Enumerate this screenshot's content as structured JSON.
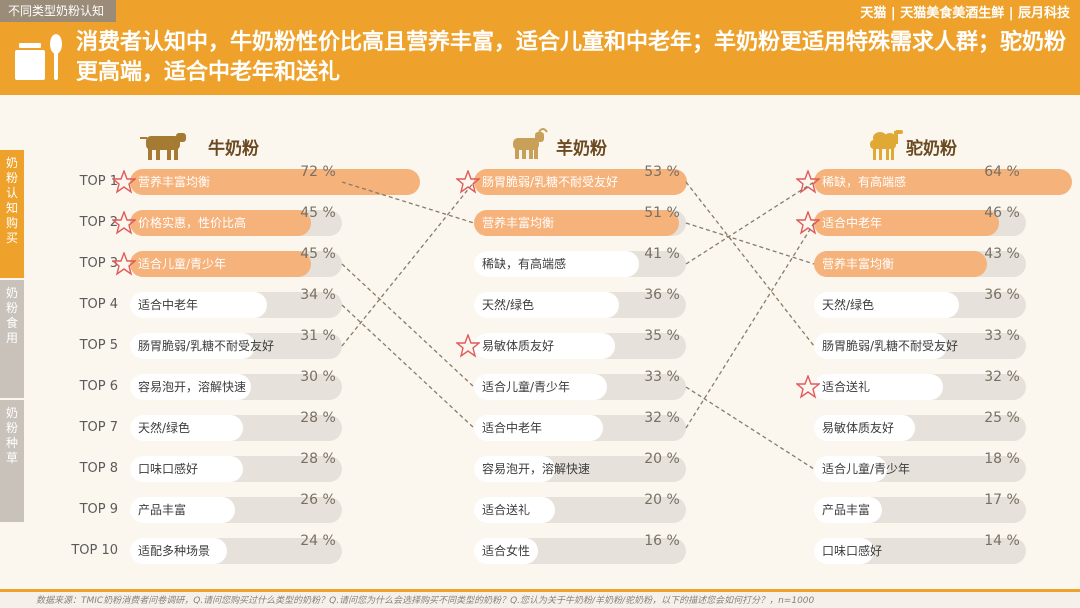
{
  "header": {
    "tag": "不同类型奶粉认知",
    "brand": "天猫 | 天猫美食美酒生鲜 | 辰月科技",
    "title": "消费者认知中，牛奶粉性价比高且营养丰富，适合儿童和中老年；羊奶粉更适用特殊需求人群；驼奶粉更高端，适合中老年和送礼",
    "accent_color": "#eea12b"
  },
  "sidenav": {
    "items": [
      {
        "label": "奶粉认知购买",
        "active": true
      },
      {
        "label": "奶粉食用",
        "active": false
      },
      {
        "label": "奶粉种草",
        "active": false
      }
    ]
  },
  "ranks": [
    "TOP 1",
    "TOP 2",
    "TOP 3",
    "TOP 4",
    "TOP 5",
    "TOP 6",
    "TOP 7",
    "TOP 8",
    "TOP 9",
    "TOP 10"
  ],
  "chart_data": {
    "type": "bar",
    "orientation": "horizontal",
    "unit": "%",
    "xlim": [
      0,
      100
    ],
    "series": [
      {
        "name": "牛奶粉",
        "icon": "cow-icon",
        "items": [
          {
            "label": "营养丰富均衡",
            "value": 72,
            "star": true
          },
          {
            "label": "价格实惠，性价比高",
            "value": 45,
            "star": true
          },
          {
            "label": "适合儿童/青少年",
            "value": 45,
            "star": true
          },
          {
            "label": "适合中老年",
            "value": 34,
            "star": false
          },
          {
            "label": "肠胃脆弱/乳糖不耐受友好",
            "value": 31,
            "star": false
          },
          {
            "label": "容易泡开，溶解快速",
            "value": 30,
            "star": false
          },
          {
            "label": "天然/绿色",
            "value": 28,
            "star": false
          },
          {
            "label": "口味口感好",
            "value": 28,
            "star": false
          },
          {
            "label": "产品丰富",
            "value": 26,
            "star": false
          },
          {
            "label": "适配多种场景",
            "value": 24,
            "star": false
          }
        ]
      },
      {
        "name": "羊奶粉",
        "icon": "goat-icon",
        "items": [
          {
            "label": "肠胃脆弱/乳糖不耐受友好",
            "value": 53,
            "star": true
          },
          {
            "label": "营养丰富均衡",
            "value": 51,
            "star": false
          },
          {
            "label": "稀缺，有高端感",
            "value": 41,
            "star": false
          },
          {
            "label": "天然/绿色",
            "value": 36,
            "star": false
          },
          {
            "label": "易敏体质友好",
            "value": 35,
            "star": true
          },
          {
            "label": "适合儿童/青少年",
            "value": 33,
            "star": false
          },
          {
            "label": "适合中老年",
            "value": 32,
            "star": false
          },
          {
            "label": "容易泡开，溶解快速",
            "value": 20,
            "star": false
          },
          {
            "label": "适合送礼",
            "value": 20,
            "star": false
          },
          {
            "label": "适合女性",
            "value": 16,
            "star": false
          }
        ]
      },
      {
        "name": "驼奶粉",
        "icon": "camel-icon",
        "items": [
          {
            "label": "稀缺，有高端感",
            "value": 64,
            "star": true
          },
          {
            "label": "适合中老年",
            "value": 46,
            "star": true
          },
          {
            "label": "营养丰富均衡",
            "value": 43,
            "star": false
          },
          {
            "label": "天然/绿色",
            "value": 36,
            "star": false
          },
          {
            "label": "肠胃脆弱/乳糖不耐受友好",
            "value": 33,
            "star": false
          },
          {
            "label": "适合送礼",
            "value": 32,
            "star": true
          },
          {
            "label": "易敏体质友好",
            "value": 25,
            "star": false
          },
          {
            "label": "适合儿童/青少年",
            "value": 18,
            "star": false
          },
          {
            "label": "产品丰富",
            "value": 17,
            "star": false
          },
          {
            "label": "口味口感好",
            "value": 14,
            "star": false
          }
        ]
      }
    ],
    "links": [
      {
        "from_series": 0,
        "from_rank": 1,
        "to_series": 1,
        "to_rank": 2
      },
      {
        "from_series": 0,
        "from_rank": 3,
        "to_series": 1,
        "to_rank": 6
      },
      {
        "from_series": 0,
        "from_rank": 4,
        "to_series": 1,
        "to_rank": 7
      },
      {
        "from_series": 0,
        "from_rank": 5,
        "to_series": 1,
        "to_rank": 1
      },
      {
        "from_series": 1,
        "from_rank": 1,
        "to_series": 2,
        "to_rank": 5
      },
      {
        "from_series": 1,
        "from_rank": 2,
        "to_series": 2,
        "to_rank": 3
      },
      {
        "from_series": 1,
        "from_rank": 3,
        "to_series": 2,
        "to_rank": 1
      },
      {
        "from_series": 1,
        "from_rank": 6,
        "to_series": 2,
        "to_rank": 8
      },
      {
        "from_series": 1,
        "from_rank": 7,
        "to_series": 2,
        "to_rank": 2
      }
    ],
    "top_color": "#f5b27b",
    "star_color": "#e05a5a",
    "track_color": "#e6e1da",
    "link_color": "#8a7a66"
  },
  "footer": {
    "source": "数据来源：TMIC奶粉消费者问卷调研，Q.请问您购买过什么类型的奶粉？Q.请问您为什么会选择购买不同类型的奶粉？Q.您认为关于牛奶粉/羊奶粉/驼奶粉，以下的描述您会如何打分？，n=1000"
  }
}
